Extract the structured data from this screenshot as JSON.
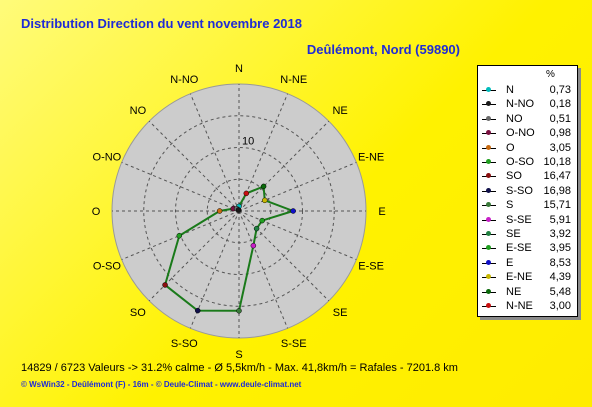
{
  "title": "Distribution Direction du vent   novembre 2018",
  "subtitle": "Deûlémont, Nord (59890)",
  "footer": "14829 / 6723 Valeurs  -> 31.2% calme   -   Ø 5,5km/h  -  Max. 41,8km/h = Rafales   -   7201.8 km",
  "credits": "© WsWin32  -  Deûlémont (F) - 16m  -  © Deule-Climat - www.deule-climat.net",
  "legend_header": "%",
  "colors": {
    "polygon": "#1a7a1a",
    "disc": "#cccccc",
    "grid": "#555555",
    "title": "#1f2bd6"
  },
  "chart_data": {
    "type": "radar",
    "title": "Distribution Direction du vent   novembre 2018",
    "radial_tick_label": "10",
    "radial_tick_value": 10,
    "rmax": 20,
    "directions": [
      "N",
      "N-NE",
      "NE",
      "E-NE",
      "E",
      "E-SE",
      "SE",
      "S-SE",
      "S",
      "S-SO",
      "SO",
      "O-SO",
      "O",
      "O-NO",
      "NO",
      "N-NO"
    ],
    "series": [
      {
        "points": [
          {
            "dir": "N",
            "label": "N",
            "value": 0.73,
            "value_text": "0,73",
            "color": "#00bcbc"
          },
          {
            "dir": "N-NE",
            "label": "N-NE",
            "value": 3.0,
            "value_text": "3,00",
            "color": "#c81010"
          },
          {
            "dir": "NE",
            "label": "NE",
            "value": 5.48,
            "value_text": "5,48",
            "color": "#0a6a0a"
          },
          {
            "dir": "E-NE",
            "label": "E-NE",
            "value": 4.39,
            "value_text": "4,39",
            "color": "#c8b800"
          },
          {
            "dir": "E",
            "label": "E",
            "value": 8.53,
            "value_text": "8,53",
            "color": "#1010c8"
          },
          {
            "dir": "E-SE",
            "label": "E-SE",
            "value": 3.95,
            "value_text": "3,95",
            "color": "#20a020"
          },
          {
            "dir": "SE",
            "label": "SE",
            "value": 3.92,
            "value_text": "3,92",
            "color": "#208040"
          },
          {
            "dir": "S-SE",
            "label": "S-SE",
            "value": 5.91,
            "value_text": "5,91",
            "color": "#c820c8"
          },
          {
            "dir": "S",
            "label": "S",
            "value": 15.71,
            "value_text": "15,71",
            "color": "#3a7a3a"
          },
          {
            "dir": "S-SO",
            "label": "S-SO",
            "value": 16.98,
            "value_text": "16,98",
            "color": "#10104a"
          },
          {
            "dir": "SO",
            "label": "SO",
            "value": 16.47,
            "value_text": "16,47",
            "color": "#8a1010"
          },
          {
            "dir": "O-SO",
            "label": "O-SO",
            "value": 10.18,
            "value_text": "10,18",
            "color": "#20a020"
          },
          {
            "dir": "O",
            "label": "O",
            "value": 3.05,
            "value_text": "3,05",
            "color": "#c86a10"
          },
          {
            "dir": "O-NO",
            "label": "O-NO",
            "value": 0.98,
            "value_text": "0,98",
            "color": "#7a1040"
          },
          {
            "dir": "NO",
            "label": "NO",
            "value": 0.51,
            "value_text": "0,51",
            "color": "#6a6a6a"
          },
          {
            "dir": "N-NO",
            "label": "N-NO",
            "value": 0.18,
            "value_text": "0,18",
            "color": "#1a1a1a"
          }
        ]
      }
    ],
    "legend_order": [
      "N",
      "N-NO",
      "NO",
      "O-NO",
      "O",
      "O-SO",
      "SO",
      "S-SO",
      "S",
      "S-SE",
      "SE",
      "E-SE",
      "E",
      "E-NE",
      "NE",
      "N-NE"
    ]
  }
}
